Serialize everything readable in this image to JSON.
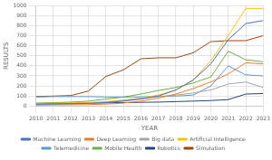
{
  "chart_data": {
    "type": "line",
    "xlabel": "YEAR",
    "ylabel": "RESULTS",
    "x": [
      2010,
      2011,
      2012,
      2013,
      2014,
      2015,
      2016,
      2017,
      2018,
      2019,
      2020,
      2021,
      2022,
      2023
    ],
    "series": [
      {
        "name": "Machine Learning",
        "color": "#4472C4",
        "values": [
          20,
          22,
          25,
          28,
          35,
          50,
          70,
          100,
          160,
          260,
          420,
          660,
          820,
          850
        ]
      },
      {
        "name": "Deep Learning",
        "color": "#ED7D31",
        "values": [
          10,
          12,
          13,
          15,
          20,
          30,
          50,
          80,
          120,
          175,
          240,
          320,
          430,
          420
        ]
      },
      {
        "name": "Big data",
        "color": "#A5A5A5",
        "values": [
          15,
          18,
          20,
          25,
          40,
          55,
          75,
          95,
          110,
          130,
          160,
          220,
          240,
          185
        ]
      },
      {
        "name": "Artificial Intelligence",
        "color": "#FFC000",
        "values": [
          25,
          28,
          30,
          35,
          45,
          60,
          80,
          110,
          160,
          260,
          450,
          700,
          970,
          970
        ]
      },
      {
        "name": "Telemedicine",
        "color": "#5B9BD5",
        "values": [
          90,
          95,
          95,
          95,
          90,
          90,
          92,
          95,
          100,
          110,
          200,
          400,
          310,
          300
        ]
      },
      {
        "name": "Mobile Health",
        "color": "#70AD47",
        "values": [
          30,
          35,
          40,
          50,
          70,
          90,
          120,
          155,
          185,
          230,
          290,
          545,
          460,
          440
        ]
      },
      {
        "name": "Robotics",
        "color": "#264478",
        "values": [
          25,
          28,
          28,
          30,
          32,
          35,
          38,
          40,
          45,
          50,
          55,
          65,
          120,
          125
        ]
      },
      {
        "name": "Simulation",
        "color": "#9E480E",
        "values": [
          95,
          100,
          105,
          150,
          295,
          360,
          470,
          480,
          480,
          530,
          640,
          650,
          650,
          700
        ]
      }
    ],
    "xlim": [
      2010,
      2023
    ],
    "xticks": [
      2010,
      2011,
      2012,
      2013,
      2014,
      2015,
      2016,
      2017,
      2018,
      2019,
      2020,
      2021,
      2022,
      2023
    ],
    "ylim": [
      0,
      1000
    ],
    "yticks": [
      0,
      100,
      200,
      300,
      400,
      500,
      600,
      700,
      800,
      900,
      1000
    ],
    "grid": true,
    "legend": "bottom"
  }
}
